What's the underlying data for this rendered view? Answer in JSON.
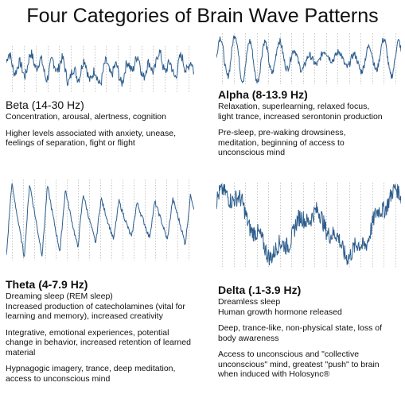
{
  "title": "Four Categories of Brain Wave Patterns",
  "colors": {
    "wave": "#2e5e8e",
    "grid": "#b9b9b9",
    "text": "#111111"
  },
  "panels": {
    "beta": {
      "heading": "Beta (14-30 Hz)",
      "lines1": [
        "Concentration, arousal, alertness, cognition"
      ],
      "lines2": [
        "Higher levels associated with anxiety, unease,",
        "feelings of separation, fight or flight"
      ]
    },
    "alpha": {
      "heading": "Alpha (8-13.9 Hz)",
      "lines1": [
        "Relaxation, superlearning, relaxed focus,",
        "light trance, increased serontonin production"
      ],
      "lines2": [
        "Pre-sleep, pre-waking drowsiness,",
        "meditation, beginning of access to",
        "unconscious mind"
      ]
    },
    "theta": {
      "heading": "Theta (4-7.9 Hz)",
      "lines1": [
        "Dreaming sleep (REM sleep)",
        "Increased production of catecholamines (vital for",
        "learning and memory), increased creativity"
      ],
      "lines2": [
        "Integrative, emotional experiences, potential",
        "change in behavior, increased retention of learned",
        "material"
      ],
      "lines3": [
        "Hypnagogic imagery, trance, deep meditation,",
        "access to unconscious mind"
      ]
    },
    "delta": {
      "heading": "Delta (.1-3.9 Hz)",
      "lines1": [
        "Dreamless sleep",
        "Human growth hormone released"
      ],
      "lines2": [
        "Deep, trance-like, non-physical state, loss of",
        "body awareness"
      ],
      "lines3": [
        "Access to unconscious and \"collective",
        "unconscious\" mind, greatest \"push\" to brain",
        "when induced with Holosync®"
      ]
    }
  }
}
